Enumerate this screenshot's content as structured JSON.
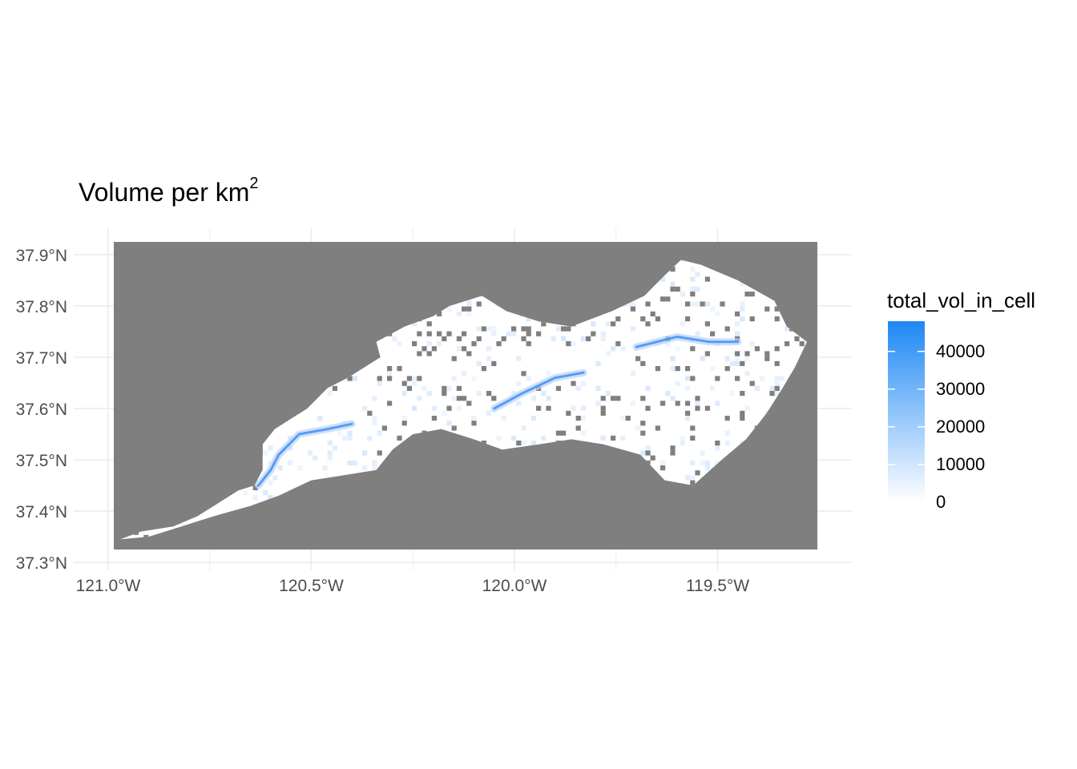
{
  "title_main": "Volume per km",
  "title_superscript": "2",
  "legend": {
    "title": "total_vol_in_cell",
    "labels": [
      "40000",
      "30000",
      "20000",
      "10000",
      "0"
    ],
    "values": [
      40000,
      30000,
      20000,
      10000,
      0
    ],
    "min": 0,
    "max": 48000,
    "color_low": "#ffffff",
    "color_high": "#1e88f5"
  },
  "axes": {
    "y_ticks": [
      "37.3°N",
      "37.4°N",
      "37.5°N",
      "37.6°N",
      "37.7°N",
      "37.8°N",
      "37.9°N"
    ],
    "y_values": [
      37.3,
      37.4,
      37.5,
      37.6,
      37.7,
      37.8,
      37.9
    ],
    "x_ticks": [
      "121.0°W",
      "120.5°W",
      "120.0°W",
      "119.5°W"
    ],
    "x_values": [
      -121.0,
      -120.5,
      -120.0,
      -119.5
    ],
    "xlim": [
      -121.0,
      -119.5
    ],
    "ylim": [
      37.3,
      37.9
    ]
  },
  "colors": {
    "raster_background": "#7f7f7f",
    "watershed_fill": "#ffffff",
    "stream_high": "#2f86ef",
    "grid": "#ebebeb",
    "tick_label": "#4d4d4d"
  },
  "chart_data": {
    "type": "heatmap",
    "title": "Volume per km²",
    "variable": "total_vol_in_cell",
    "x_domain_deg": [
      -121.0,
      -119.27
    ],
    "y_domain_deg": [
      37.325,
      37.925
    ],
    "color_scale": {
      "min": 0,
      "max": 48000
    },
    "watershed_outline_lonlat": [
      [
        -120.97,
        37.345
      ],
      [
        -120.92,
        37.36
      ],
      [
        -120.84,
        37.37
      ],
      [
        -120.78,
        37.39
      ],
      [
        -120.74,
        37.41
      ],
      [
        -120.68,
        37.44
      ],
      [
        -120.64,
        37.45
      ],
      [
        -120.62,
        37.48
      ],
      [
        -120.62,
        37.53
      ],
      [
        -120.59,
        37.56
      ],
      [
        -120.55,
        37.58
      ],
      [
        -120.51,
        37.6
      ],
      [
        -120.46,
        37.64
      ],
      [
        -120.41,
        37.66
      ],
      [
        -120.37,
        37.68
      ],
      [
        -120.33,
        37.7
      ],
      [
        -120.34,
        37.73
      ],
      [
        -120.27,
        37.76
      ],
      [
        -120.2,
        37.78
      ],
      [
        -120.16,
        37.8
      ],
      [
        -120.08,
        37.82
      ],
      [
        -120.02,
        37.79
      ],
      [
        -119.94,
        37.77
      ],
      [
        -119.86,
        37.76
      ],
      [
        -119.76,
        37.79
      ],
      [
        -119.68,
        37.82
      ],
      [
        -119.63,
        37.86
      ],
      [
        -119.59,
        37.89
      ],
      [
        -119.54,
        37.88
      ],
      [
        -119.45,
        37.85
      ],
      [
        -119.36,
        37.81
      ],
      [
        -119.33,
        37.76
      ],
      [
        -119.28,
        37.73
      ],
      [
        -119.31,
        37.68
      ],
      [
        -119.34,
        37.64
      ],
      [
        -119.38,
        37.59
      ],
      [
        -119.43,
        37.54
      ],
      [
        -119.49,
        37.5
      ],
      [
        -119.56,
        37.45
      ],
      [
        -119.63,
        37.46
      ],
      [
        -119.69,
        37.51
      ],
      [
        -119.78,
        37.53
      ],
      [
        -119.86,
        37.54
      ],
      [
        -119.94,
        37.53
      ],
      [
        -120.03,
        37.52
      ],
      [
        -120.1,
        37.54
      ],
      [
        -120.18,
        37.56
      ],
      [
        -120.25,
        37.55
      ],
      [
        -120.3,
        37.52
      ],
      [
        -120.34,
        37.48
      ],
      [
        -120.42,
        37.47
      ],
      [
        -120.5,
        37.46
      ],
      [
        -120.58,
        37.43
      ],
      [
        -120.65,
        37.41
      ],
      [
        -120.74,
        37.39
      ],
      [
        -120.82,
        37.37
      ],
      [
        -120.9,
        37.35
      ],
      [
        -120.97,
        37.345
      ]
    ],
    "high_volume_streams_lonlat": [
      [
        [
          -120.63,
          37.45
        ],
        [
          -120.6,
          37.48
        ],
        [
          -120.58,
          37.51
        ],
        [
          -120.53,
          37.55
        ],
        [
          -120.46,
          37.56
        ],
        [
          -120.4,
          37.57
        ]
      ],
      [
        [
          -120.05,
          37.6
        ],
        [
          -119.98,
          37.63
        ],
        [
          -119.9,
          37.66
        ],
        [
          -119.83,
          37.67
        ]
      ],
      [
        [
          -119.7,
          37.72
        ],
        [
          -119.6,
          37.74
        ],
        [
          -119.52,
          37.73
        ],
        [
          -119.45,
          37.73
        ]
      ]
    ]
  }
}
